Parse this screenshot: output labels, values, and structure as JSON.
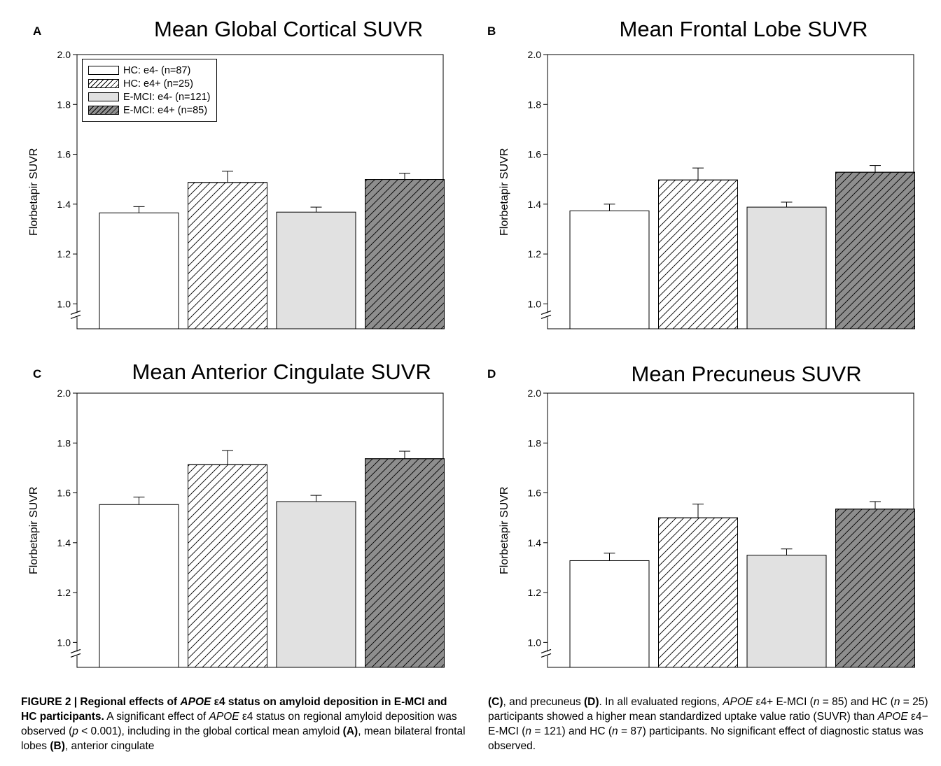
{
  "colors": {
    "hc_e4_neg": "#ffffff",
    "hc_e4_pos": "#ffffff",
    "emci_e4_neg": "#e1e1e1",
    "emci_e4_pos": "#8e8e8e",
    "axis": "#000000"
  },
  "legend": [
    {
      "label": "HC: e4- (n=87)",
      "fill": "#ffffff",
      "hatched": false
    },
    {
      "label": "HC: e4+ (n=25)",
      "fill": "#ffffff",
      "hatched": true
    },
    {
      "label": "E-MCI: e4- (n=121)",
      "fill": "#e1e1e1",
      "hatched": false
    },
    {
      "label": "E-MCI: e4+ (n=85)",
      "fill": "#8e8e8e",
      "hatched": true
    }
  ],
  "chart_data": [
    {
      "type": "bar",
      "panel": "A",
      "title": "Mean Global Cortical SUVR",
      "ylabel": "Florbetapir SUVR",
      "ylim": [
        0.9,
        2.0
      ],
      "yticks": [
        "1.0",
        "1.2",
        "1.4",
        "1.6",
        "1.8",
        "2.0"
      ],
      "axis_break": true,
      "legend_position": "top-left",
      "categories": [
        "HC: e4- (n=87)",
        "HC: e4+ (n=25)",
        "E-MCI: e4- (n=121)",
        "E-MCI: e4+ (n=85)"
      ],
      "values": [
        1.365,
        1.487,
        1.368,
        1.499
      ],
      "errors": [
        0.025,
        0.045,
        0.02,
        0.025
      ]
    },
    {
      "type": "bar",
      "panel": "B",
      "title": "Mean Frontal Lobe SUVR",
      "ylabel": "Florbetapir SUVR",
      "ylim": [
        0.9,
        2.0
      ],
      "yticks": [
        "1.0",
        "1.2",
        "1.4",
        "1.6",
        "1.8",
        "2.0"
      ],
      "axis_break": true,
      "categories": [
        "HC: e4- (n=87)",
        "HC: e4+ (n=25)",
        "E-MCI: e4- (n=121)",
        "E-MCI: e4+ (n=85)"
      ],
      "values": [
        1.373,
        1.497,
        1.388,
        1.528
      ],
      "errors": [
        0.027,
        0.048,
        0.02,
        0.027
      ]
    },
    {
      "type": "bar",
      "panel": "C",
      "title": "Mean Anterior Cingulate SUVR",
      "ylabel": "Florbetapir SUVR",
      "ylim": [
        0.9,
        2.0
      ],
      "yticks": [
        "1.0",
        "1.2",
        "1.4",
        "1.6",
        "1.8",
        "2.0"
      ],
      "axis_break": true,
      "categories": [
        "HC: e4- (n=87)",
        "HC: e4+ (n=25)",
        "E-MCI: e4- (n=121)",
        "E-MCI: e4+ (n=85)"
      ],
      "values": [
        1.553,
        1.713,
        1.565,
        1.737
      ],
      "errors": [
        0.03,
        0.057,
        0.025,
        0.03
      ]
    },
    {
      "type": "bar",
      "panel": "D",
      "title": "Mean Precuneus SUVR",
      "ylabel": "Florbetapir SUVR",
      "ylim": [
        0.9,
        2.0
      ],
      "yticks": [
        "1.0",
        "1.2",
        "1.4",
        "1.6",
        "1.8",
        "2.0"
      ],
      "axis_break": true,
      "categories": [
        "HC: e4- (n=87)",
        "HC: e4+ (n=25)",
        "E-MCI: e4- (n=121)",
        "E-MCI: e4+ (n=85)"
      ],
      "values": [
        1.328,
        1.5,
        1.35,
        1.535
      ],
      "errors": [
        0.03,
        0.055,
        0.025,
        0.03
      ]
    }
  ],
  "caption": {
    "left_html": "<b>FIGURE 2 | Regional effects of <i>APOE</i> ε4 status on amyloid deposition in E-MCI and HC participants.</b> A significant effect of <i>APOE</i> ε4 status on regional amyloid deposition was observed (<i>p</i> &lt; 0.001), including in the global cortical mean amyloid <b>(A)</b>, mean bilateral frontal lobes <b>(B)</b>, anterior cingulate",
    "right_html": "<b>(C)</b>, and precuneus <b>(D)</b>. In all evaluated regions, <i>APOE</i> ε4+ E-MCI (<i>n</i> = 85) and HC (<i>n</i> = 25) participants showed a higher mean standardized uptake value ratio (SUVR) than <i>APOE</i> ε4− E-MCI (<i>n</i> = 121) and HC (<i>n</i> = 87) participants. No significant effect of diagnostic status was observed."
  }
}
